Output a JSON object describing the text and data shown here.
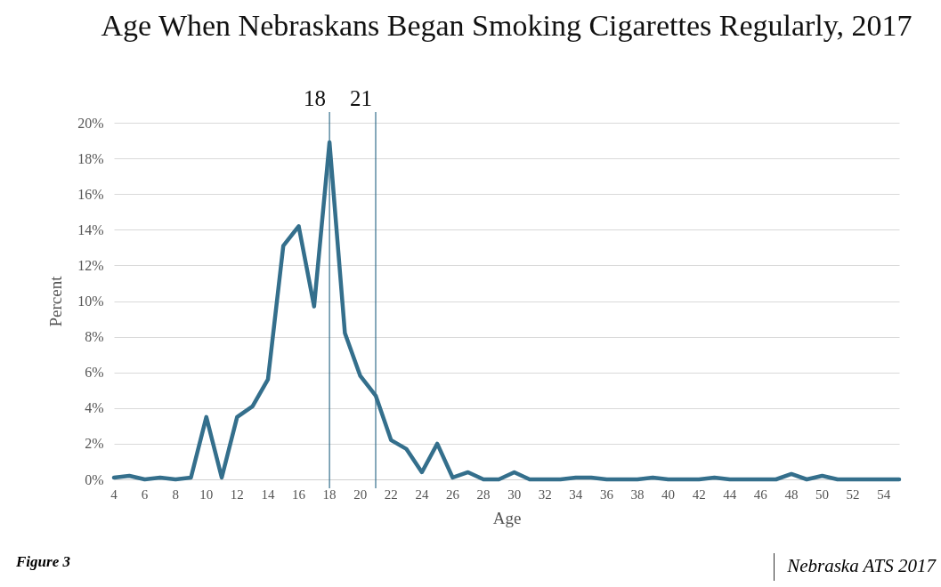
{
  "chart_data": {
    "type": "line",
    "title": "Age When Nebraskans Began Smoking Cigarettes Regularly, 2017",
    "xlabel": "Age",
    "ylabel": "Percent",
    "x": [
      4,
      5,
      6,
      7,
      8,
      9,
      10,
      11,
      12,
      13,
      14,
      15,
      16,
      17,
      18,
      19,
      20,
      21,
      22,
      23,
      24,
      25,
      26,
      27,
      28,
      29,
      30,
      31,
      32,
      33,
      34,
      35,
      36,
      37,
      38,
      39,
      40,
      41,
      42,
      43,
      44,
      45,
      46,
      47,
      48,
      49,
      50,
      51,
      52,
      53,
      54,
      55
    ],
    "series": [
      {
        "color": "#346f8c",
        "values": [
          0.1,
          0.2,
          0,
          0.1,
          0,
          0.1,
          3.5,
          0.1,
          3.5,
          4.1,
          5.6,
          13.1,
          14.2,
          9.7,
          18.9,
          8.2,
          5.8,
          4.7,
          2.2,
          1.7,
          0.4,
          2.0,
          0.1,
          0.4,
          0,
          0,
          0.4,
          0,
          0,
          0,
          0.1,
          0.1,
          0,
          0,
          0,
          0.1,
          0,
          0,
          0,
          0.1,
          0,
          0,
          0,
          0,
          0.3,
          0,
          0.2,
          0,
          0,
          0,
          0,
          0
        ]
      }
    ],
    "xlim": [
      4,
      55
    ],
    "xticks": [
      4,
      6,
      8,
      10,
      12,
      14,
      16,
      18,
      20,
      22,
      24,
      26,
      28,
      30,
      32,
      34,
      36,
      38,
      40,
      42,
      44,
      46,
      48,
      50,
      52,
      54
    ],
    "ylim": [
      0,
      20
    ],
    "yticks": [
      {
        "value": 0,
        "label": "0%"
      },
      {
        "value": 2,
        "label": "2%"
      },
      {
        "value": 4,
        "label": "4%"
      },
      {
        "value": 6,
        "label": "6%"
      },
      {
        "value": 8,
        "label": "8%"
      },
      {
        "value": 10,
        "label": "10%"
      },
      {
        "value": 12,
        "label": "12%"
      },
      {
        "value": 14,
        "label": "14%"
      },
      {
        "value": 16,
        "label": "16%"
      },
      {
        "value": 18,
        "label": "18%"
      },
      {
        "value": 20,
        "label": "20%"
      }
    ],
    "grid": "y",
    "legend": false,
    "ref_lines": [
      {
        "axis": "x",
        "value": 18,
        "label": "18",
        "color": "#346f8c"
      },
      {
        "axis": "x",
        "value": 21,
        "label": "21",
        "color": "#346f8c"
      }
    ],
    "annotations": [
      "Figure 3",
      "Nebraska ATS 2017"
    ]
  }
}
